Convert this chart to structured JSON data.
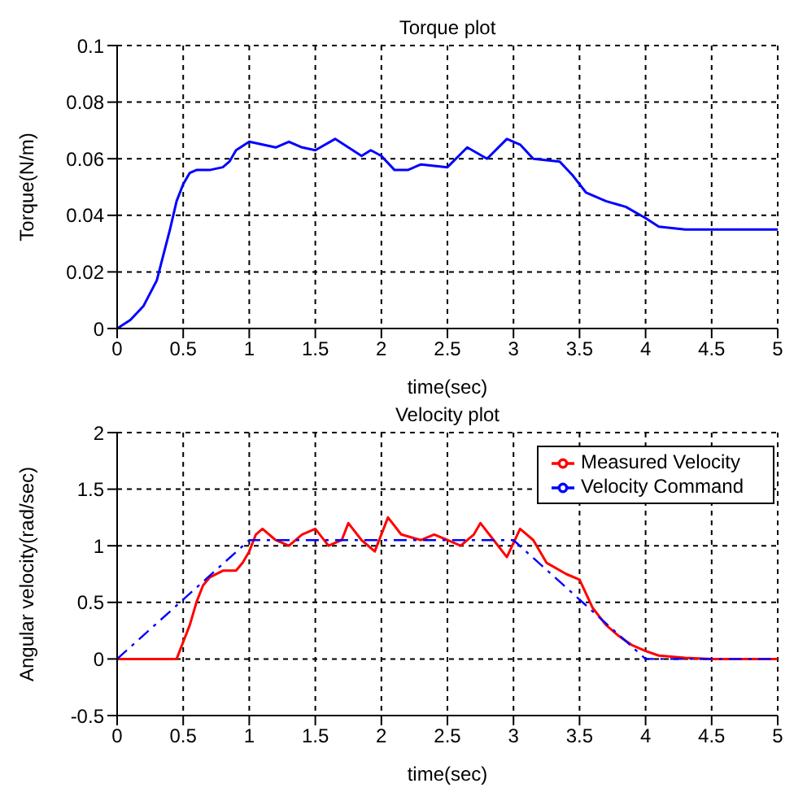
{
  "chart_data": [
    {
      "type": "line",
      "title": "Torque plot",
      "xlabel": "time(sec)",
      "ylabel": "Torque(N/m)",
      "xlim": [
        0,
        5
      ],
      "xticks": [
        0,
        0.5,
        1,
        1.5,
        2,
        2.5,
        3,
        3.5,
        4,
        4.5,
        5
      ],
      "ylim": [
        0,
        0.1
      ],
      "yticks": [
        0,
        0.02,
        0.04,
        0.06,
        0.08,
        0.1
      ],
      "grid": true,
      "legend": false,
      "series": [
        {
          "color": "#0000ff",
          "line_style": "solid",
          "x": [
            0,
            0.1,
            0.2,
            0.3,
            0.4,
            0.45,
            0.5,
            0.55,
            0.6,
            0.7,
            0.8,
            0.85,
            0.9,
            1.0,
            1.1,
            1.2,
            1.3,
            1.4,
            1.5,
            1.65,
            1.75,
            1.85,
            1.92,
            2.0,
            2.1,
            2.2,
            2.3,
            2.5,
            2.65,
            2.8,
            2.95,
            3.05,
            3.15,
            3.35,
            3.45,
            3.55,
            3.7,
            3.85,
            4.0,
            4.1,
            4.3,
            5
          ],
          "values": [
            0,
            0.003,
            0.008,
            0.017,
            0.035,
            0.045,
            0.051,
            0.055,
            0.056,
            0.056,
            0.057,
            0.059,
            0.063,
            0.066,
            0.065,
            0.064,
            0.066,
            0.064,
            0.063,
            0.067,
            0.064,
            0.061,
            0.063,
            0.061,
            0.056,
            0.056,
            0.058,
            0.057,
            0.064,
            0.06,
            0.067,
            0.065,
            0.06,
            0.059,
            0.054,
            0.048,
            0.045,
            0.043,
            0.039,
            0.036,
            0.035,
            0.035
          ]
        }
      ]
    },
    {
      "type": "line",
      "title": "Velocity plot",
      "xlabel": "time(sec)",
      "ylabel": "Angular velocity(rad/sec)",
      "xlim": [
        0,
        5
      ],
      "xticks": [
        0,
        0.5,
        1,
        1.5,
        2,
        2.5,
        3,
        3.5,
        4,
        4.5,
        5
      ],
      "ylim": [
        -0.5,
        2
      ],
      "yticks": [
        -0.5,
        0,
        0.5,
        1,
        1.5,
        2
      ],
      "grid": true,
      "legend": "top right",
      "series": [
        {
          "name": "Measured Velocity",
          "color": "#ff0000",
          "line_style": "solid",
          "x": [
            0,
            0.3,
            0.45,
            0.5,
            0.55,
            0.6,
            0.65,
            0.7,
            0.8,
            0.9,
            0.95,
            1.0,
            1.05,
            1.1,
            1.2,
            1.3,
            1.4,
            1.5,
            1.6,
            1.7,
            1.75,
            1.85,
            1.95,
            2.05,
            2.15,
            2.3,
            2.4,
            2.5,
            2.6,
            2.7,
            2.75,
            2.85,
            2.95,
            3.05,
            3.15,
            3.25,
            3.4,
            3.5,
            3.6,
            3.7,
            3.8,
            3.9,
            4.0,
            4.1,
            4.3,
            4.5,
            4.7,
            5
          ],
          "values": [
            0,
            0,
            0,
            0.15,
            0.3,
            0.5,
            0.65,
            0.72,
            0.78,
            0.78,
            0.85,
            0.95,
            1.1,
            1.15,
            1.05,
            1.0,
            1.1,
            1.15,
            1.0,
            1.05,
            1.2,
            1.05,
            0.95,
            1.25,
            1.1,
            1.05,
            1.1,
            1.05,
            1.0,
            1.1,
            1.2,
            1.05,
            0.9,
            1.15,
            1.05,
            0.85,
            0.75,
            0.7,
            0.45,
            0.3,
            0.2,
            0.12,
            0.07,
            0.03,
            0.01,
            0,
            0,
            0
          ]
        },
        {
          "name": "Velocity Command",
          "color": "#0000ff",
          "line_style": "dashed",
          "x": [
            0,
            1,
            3,
            4,
            5
          ],
          "values": [
            0,
            1.05,
            1.05,
            0,
            0
          ]
        }
      ]
    }
  ]
}
